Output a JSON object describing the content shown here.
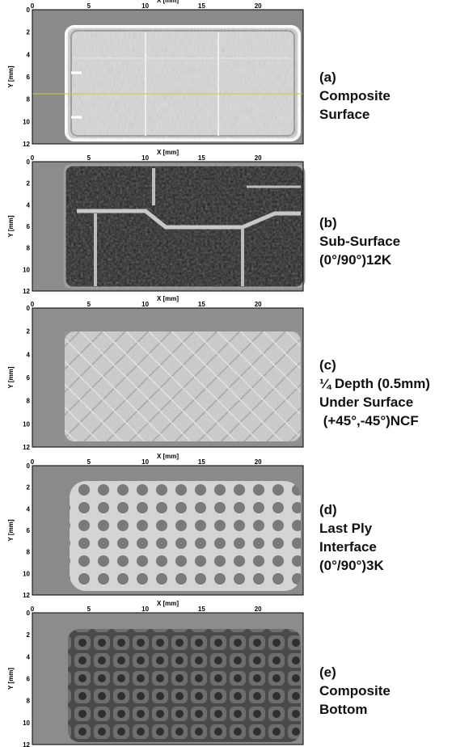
{
  "axes": {
    "xlabel": "X [mm]",
    "ylabel": "Y [mm]",
    "xticks": [
      "0",
      "5",
      "10",
      "15",
      "20"
    ],
    "yticks": [
      "0",
      "2",
      "4",
      "6",
      "8",
      "10",
      "12"
    ]
  },
  "panels": [
    {
      "id": "a",
      "caption": [
        "(a)",
        "Composite",
        "Surface"
      ]
    },
    {
      "id": "b",
      "caption": [
        "(b)",
        "Sub-Surface",
        "(0°/90°)12K"
      ]
    },
    {
      "id": "c",
      "caption": [
        "(c)",
        "¼ Depth (0.5mm)",
        "Under Surface",
        " (+45°,-45°)NCF"
      ]
    },
    {
      "id": "d",
      "caption": [
        "(d)",
        "Last Ply",
        "Interface",
        "(0°/90°)3K"
      ]
    },
    {
      "id": "e",
      "caption": [
        "(e)",
        "Composite",
        "Bottom"
      ]
    }
  ]
}
